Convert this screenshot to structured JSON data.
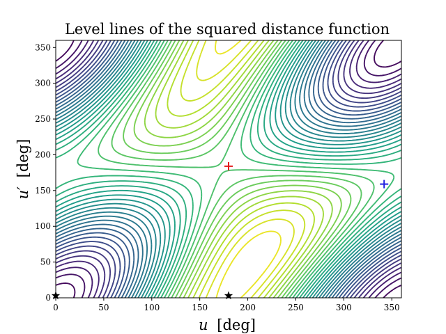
{
  "chart_data": {
    "type": "contour",
    "title": "Level lines of the squared distance function",
    "xlabel_var": "u",
    "xlabel_unit": "[deg]",
    "ylabel_var": "u′",
    "ylabel_unit": "[deg]",
    "xlim": [
      0,
      360
    ],
    "ylim": [
      0,
      360
    ],
    "x_ticks": [
      0,
      50,
      100,
      150,
      200,
      250,
      300,
      350
    ],
    "y_ticks": [
      0,
      50,
      100,
      150,
      200,
      250,
      300,
      350
    ],
    "colormap": "viridis",
    "grid": false,
    "level_count": 34,
    "markers": [
      {
        "name": "maximum",
        "symbol": "+",
        "color": "#e31a1c",
        "x": 180,
        "y": 184
      },
      {
        "name": "minimum",
        "symbol": "+",
        "color": "#1f1fe0",
        "x": 342,
        "y": 159
      },
      {
        "name": "critical",
        "symbol": "star",
        "color": "#000000",
        "x": 0,
        "y": 3
      },
      {
        "name": "critical",
        "symbol": "star",
        "color": "#000000",
        "x": 180,
        "y": 3
      }
    ]
  }
}
